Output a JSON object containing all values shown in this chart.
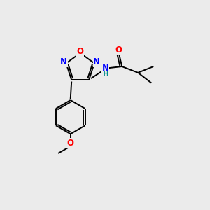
{
  "background_color": "#ebebeb",
  "bond_color": "#000000",
  "atom_colors": {
    "O": "#ff0000",
    "N": "#0000ff",
    "H": "#008b8b",
    "C": "#000000"
  },
  "figsize": [
    3.0,
    3.0
  ],
  "dpi": 100,
  "lw": 1.4
}
